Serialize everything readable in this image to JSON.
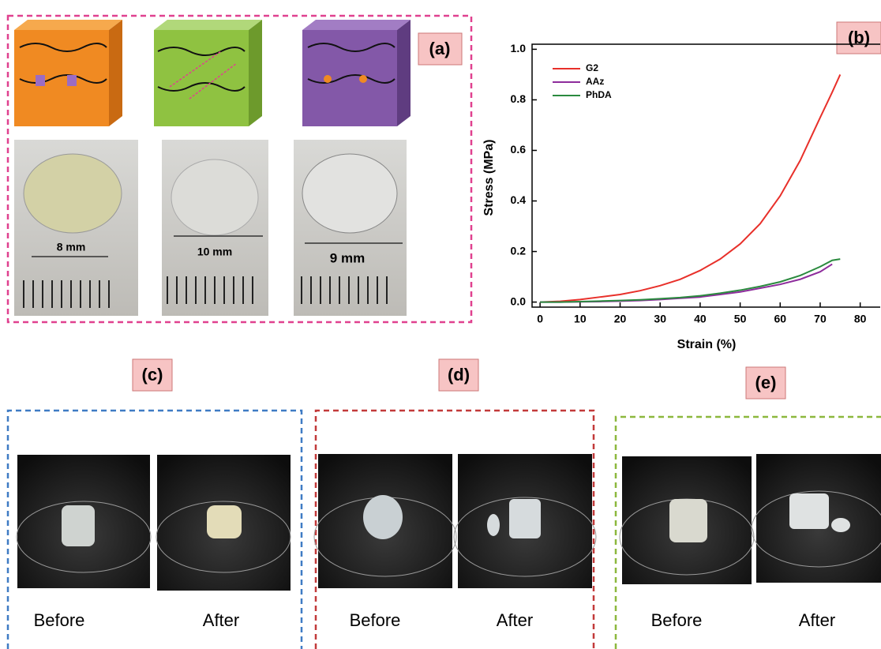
{
  "panels": {
    "a": {
      "label": "(a)",
      "scales": [
        "8 mm",
        "10 mm",
        "9 mm"
      ]
    },
    "c": {
      "label": "(c)",
      "captions": [
        "Before",
        "After"
      ]
    },
    "d": {
      "label": "(d)",
      "captions": [
        "Before",
        "After"
      ]
    },
    "e": {
      "label": "(e)",
      "captions": [
        "Before",
        "After"
      ]
    }
  },
  "chart_data": {
    "type": "line",
    "label": "(b)",
    "xlabel": "Strain (%)",
    "ylabel": "Stress (MPa)",
    "xlim": [
      -2,
      85
    ],
    "ylim": [
      -0.02,
      1.02
    ],
    "xticks": [
      0,
      10,
      20,
      30,
      40,
      50,
      60,
      70,
      80
    ],
    "yticks": [
      {
        "value": 0,
        "label": "0.0"
      },
      0.2,
      0.4,
      0.6,
      0.8,
      {
        "value": 1,
        "label": "1.0"
      }
    ],
    "x": [
      0,
      5,
      10,
      15,
      20,
      25,
      30,
      35,
      40,
      45,
      50,
      55,
      60,
      65,
      70,
      73,
      75
    ],
    "series": [
      {
        "name": "G2",
        "color": "#e8302a",
        "values": [
          0,
          0.003,
          0.01,
          0.02,
          0.03,
          0.045,
          0.065,
          0.09,
          0.125,
          0.17,
          0.23,
          0.31,
          0.42,
          0.56,
          0.73,
          0.83,
          0.9
        ]
      },
      {
        "name": "AAz",
        "color": "#8e2c9c",
        "values": [
          0,
          0,
          0.001,
          0.002,
          0.004,
          0.006,
          0.01,
          0.015,
          0.02,
          0.03,
          0.04,
          0.055,
          0.07,
          0.09,
          0.12,
          0.15,
          null
        ]
      },
      {
        "name": "PhDA",
        "color": "#2a8a3e",
        "values": [
          0,
          0,
          0.002,
          0.004,
          0.006,
          0.009,
          0.013,
          0.018,
          0.025,
          0.035,
          0.047,
          0.062,
          0.08,
          0.105,
          0.14,
          0.165,
          0.17
        ]
      }
    ]
  }
}
